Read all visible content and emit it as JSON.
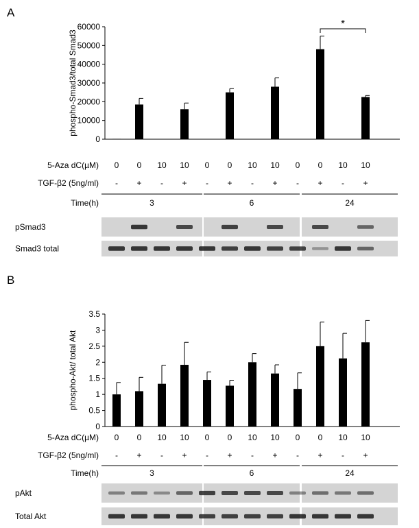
{
  "panels": [
    {
      "letter": "A",
      "chart_data": {
        "type": "bar",
        "ylabel": "phospho-Smad3/total Smad3",
        "ylim": [
          0,
          60000
        ],
        "yticks": [
          0,
          10000,
          20000,
          30000,
          40000,
          50000,
          60000
        ],
        "grid": false,
        "values": [
          200,
          18500,
          0,
          16000,
          0,
          25000,
          0,
          28000,
          0,
          48000,
          0,
          22500
        ],
        "errors": [
          0,
          3300,
          0,
          3300,
          0,
          2000,
          0,
          4700,
          0,
          7000,
          0,
          800
        ]
      },
      "significance": {
        "from": 9,
        "to": 11,
        "label": "*"
      },
      "aza": {
        "label": "5-Aza dC(µM)",
        "values": [
          "0",
          "0",
          "10",
          "10",
          "0",
          "0",
          "10",
          "10",
          "0",
          "0",
          "10",
          "10"
        ]
      },
      "tgf": {
        "label": "TGF-β2 (5ng/ml)",
        "values": [
          "-",
          "+",
          "-",
          "+",
          "-",
          "+",
          "-",
          "+",
          "-",
          "+",
          "-",
          "+"
        ]
      },
      "time": {
        "label": "Time(h)",
        "values": [
          "3",
          "6",
          "24"
        ]
      },
      "blots": [
        {
          "label": "pSmad3",
          "intensity": [
            0,
            0.85,
            0,
            0.75,
            0,
            0.8,
            0,
            0.75,
            0,
            0.75,
            0,
            0.6
          ]
        },
        {
          "label": "Smad3 total",
          "intensity": [
            0.85,
            0.85,
            0.85,
            0.85,
            0.85,
            0.8,
            0.85,
            0.8,
            0.8,
            0.35,
            0.85,
            0.6
          ]
        }
      ]
    },
    {
      "letter": "B",
      "chart_data": {
        "type": "bar",
        "ylabel": "phospho-Akt/ total Akt",
        "ylim": [
          0,
          3.5
        ],
        "yticks": [
          0,
          0.5,
          1,
          1.5,
          2,
          2.5,
          3,
          3.5
        ],
        "grid": false,
        "values": [
          1.0,
          1.1,
          1.33,
          1.92,
          1.45,
          1.27,
          2.0,
          1.65,
          1.17,
          2.5,
          2.12,
          2.62
        ],
        "errors": [
          0.37,
          0.43,
          0.58,
          0.7,
          0.25,
          0.17,
          0.27,
          0.27,
          0.5,
          0.75,
          0.78,
          0.68
        ]
      },
      "significance": null,
      "aza": {
        "label": "5-Aza dC(µM)",
        "values": [
          "0",
          "0",
          "10",
          "10",
          "0",
          "0",
          "10",
          "10",
          "0",
          "0",
          "10",
          "10"
        ]
      },
      "tgf": {
        "label": "TGF-β2 (5ng/ml)",
        "values": [
          "-",
          "+",
          "-",
          "+",
          "-",
          "+",
          "-",
          "+",
          "-",
          "+",
          "-",
          "+"
        ]
      },
      "time": {
        "label": "Time(h)",
        "values": [
          "3",
          "6",
          "24"
        ]
      },
      "blots": [
        {
          "label": "pAkt",
          "intensity": [
            0.45,
            0.5,
            0.4,
            0.6,
            0.8,
            0.75,
            0.75,
            0.75,
            0.45,
            0.55,
            0.5,
            0.55
          ]
        },
        {
          "label": "Total Akt",
          "intensity": [
            0.85,
            0.85,
            0.85,
            0.85,
            0.8,
            0.8,
            0.8,
            0.8,
            0.85,
            0.85,
            0.85,
            0.85
          ]
        }
      ]
    }
  ],
  "colors": {
    "bar": "#000000",
    "blot_background": "#d4d4d4",
    "band": "#1a1a1a"
  }
}
